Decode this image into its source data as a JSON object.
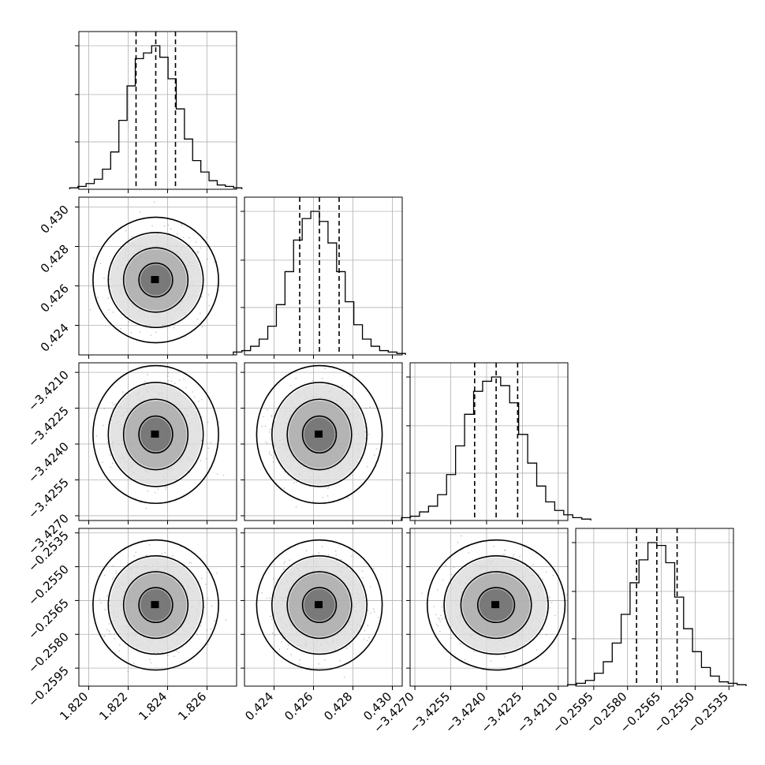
{
  "chart_data": {
    "type": "corner",
    "parameters": [
      {
        "range": [
          1.8195,
          1.8275
        ],
        "ticks": [
          1.82,
          1.822,
          1.824,
          1.826
        ],
        "tick_labels": [
          "1.820",
          "1.822",
          "1.824",
          "1.826"
        ],
        "quantiles": [
          1.8224,
          1.8234,
          1.8244
        ],
        "mean": 1.8234,
        "sigma": 0.00097
      },
      {
        "range": [
          0.4225,
          0.4305
        ],
        "ticks": [
          0.424,
          0.426,
          0.428,
          0.43
        ],
        "tick_labels": [
          "0.424",
          "0.426",
          "0.428",
          "0.430"
        ],
        "quantiles": [
          0.4253,
          0.4263,
          0.4273
        ],
        "mean": 0.4263,
        "sigma": 0.00097
      },
      {
        "range": [
          -3.4272,
          -3.4206
        ],
        "ticks": [
          -3.427,
          -3.4255,
          -3.424,
          -3.4225,
          -3.421
        ],
        "tick_labels": [
          "−3.4270",
          "−3.4255",
          "−3.4240",
          "−3.4225",
          "−3.4210"
        ],
        "quantiles": [
          -3.4245,
          -3.4236,
          -3.4227
        ],
        "mean": -3.4236,
        "sigma": 0.00088
      },
      {
        "range": [
          -0.2603,
          -0.2533
        ],
        "ticks": [
          -0.2595,
          -0.258,
          -0.2565,
          -0.255,
          -0.2535
        ],
        "tick_labels": [
          "−0.2595",
          "−0.2580",
          "−0.2565",
          "−0.2550",
          "−0.2535"
        ],
        "quantiles": [
          -0.2576,
          -0.2567,
          -0.2558
        ],
        "mean": -0.2567,
        "sigma": 0.00088
      }
    ],
    "histograms": [
      [
        0.01,
        0.02,
        0.04,
        0.07,
        0.14,
        0.26,
        0.48,
        0.72,
        0.91,
        0.95,
        1.0,
        0.92,
        0.77,
        0.56,
        0.35,
        0.2,
        0.12,
        0.06,
        0.03,
        0.02,
        0.01
      ],
      [
        0.02,
        0.03,
        0.06,
        0.11,
        0.2,
        0.35,
        0.58,
        0.8,
        0.95,
        1.0,
        0.93,
        0.78,
        0.58,
        0.37,
        0.21,
        0.11,
        0.06,
        0.03,
        0.02,
        0.01
      ],
      [
        0.02,
        0.03,
        0.06,
        0.1,
        0.18,
        0.32,
        0.52,
        0.74,
        0.9,
        0.97,
        1.0,
        0.94,
        0.82,
        0.6,
        0.4,
        0.24,
        0.13,
        0.07,
        0.04,
        0.02,
        0.01
      ],
      [
        0.01,
        0.02,
        0.04,
        0.09,
        0.17,
        0.3,
        0.5,
        0.72,
        0.88,
        1.0,
        0.98,
        0.86,
        0.62,
        0.4,
        0.24,
        0.13,
        0.07,
        0.03,
        0.02,
        0.01
      ]
    ],
    "contour_levels_sigma": [
      0.5,
      1.0,
      1.5,
      2.0
    ],
    "grid": true,
    "xlabel": "",
    "ylabel": "",
    "title": ""
  }
}
